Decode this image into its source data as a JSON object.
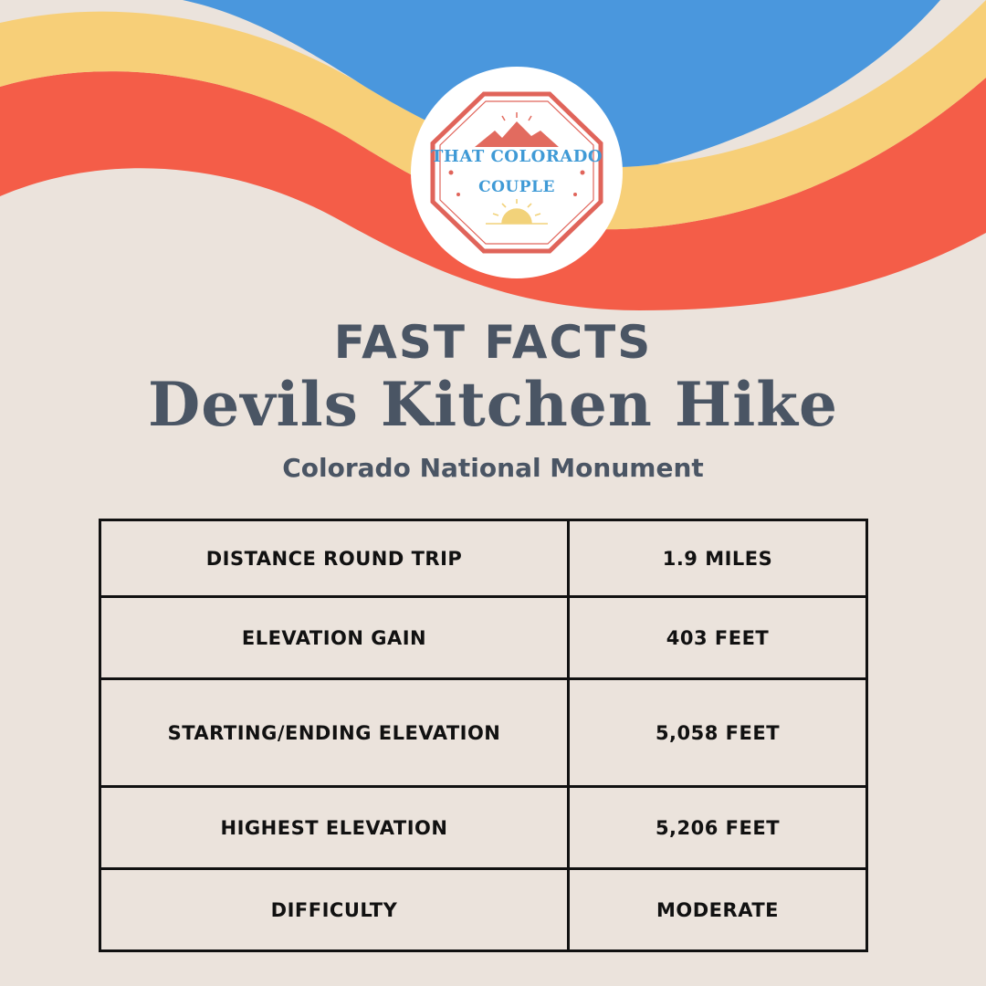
{
  "logo": {
    "line1": "THAT COLORADO",
    "line2": "COUPLE",
    "colors": {
      "border": "#e0645a",
      "text": "#3f9ad6",
      "mountain": "#e26b5f",
      "sun": "#f2d27a"
    }
  },
  "waves": {
    "colors": {
      "blue": "#4a97dd",
      "yellow": "#f7cf78",
      "red": "#f45d48"
    }
  },
  "header": {
    "kicker": "FAST FACTS",
    "title": "Devils Kitchen Hike",
    "subtitle": "Colorado National Monument"
  },
  "facts": [
    {
      "label": "DISTANCE ROUND TRIP",
      "value": "1.9 MILES"
    },
    {
      "label": "ELEVATION GAIN",
      "value": "403 FEET"
    },
    {
      "label": "STARTING/ENDING ELEVATION",
      "value": "5,058 FEET"
    },
    {
      "label": "HIGHEST ELEVATION",
      "value": "5,206 FEET"
    },
    {
      "label": "DIFFICULTY",
      "value": "MODERATE"
    }
  ],
  "colors": {
    "background": "#ebe3dc",
    "heading": "#4a5564",
    "table_text": "#111111"
  }
}
